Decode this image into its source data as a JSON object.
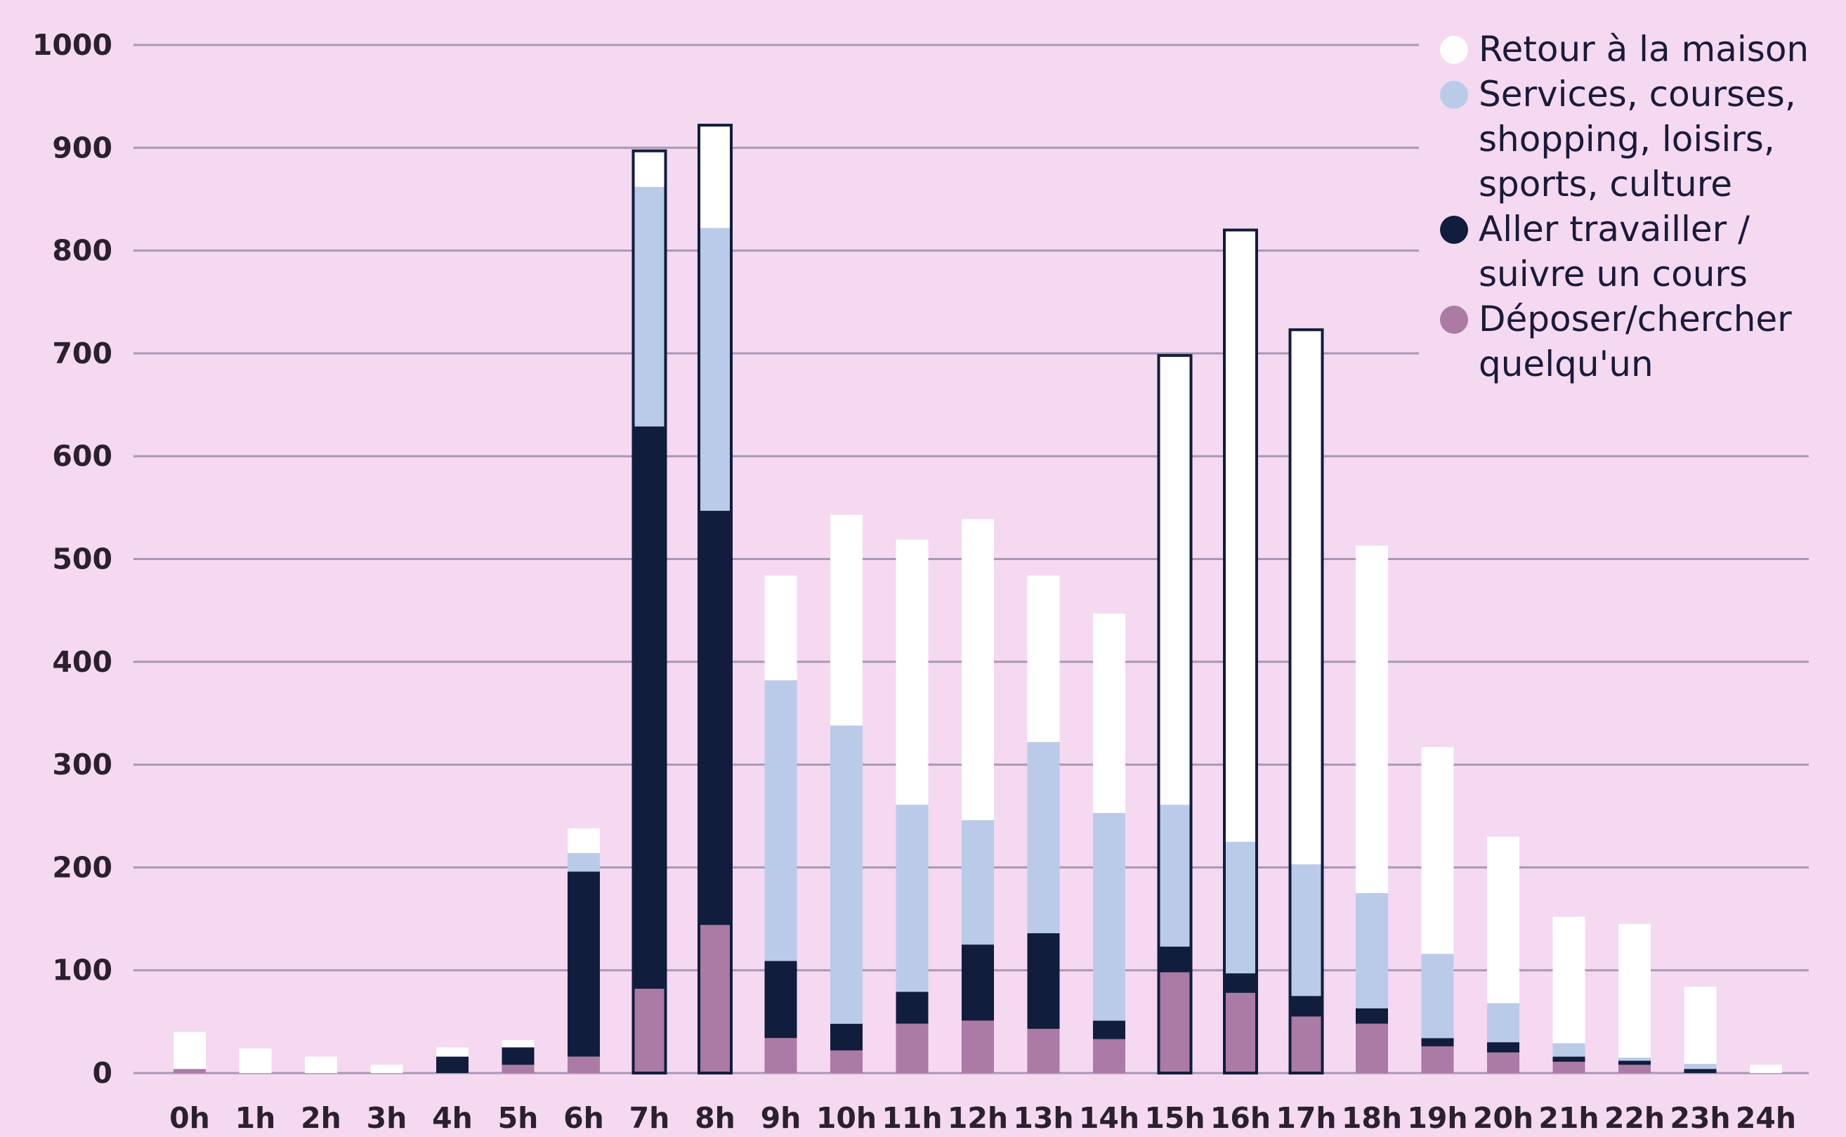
{
  "chart_data": {
    "type": "bar",
    "stacked": true,
    "categories": [
      "0h",
      "1h",
      "2h",
      "3h",
      "4h",
      "5h",
      "6h",
      "7h",
      "8h",
      "9h",
      "10h",
      "11h",
      "12h",
      "13h",
      "14h",
      "15h",
      "16h",
      "17h",
      "18h",
      "19h",
      "20h",
      "21h",
      "22h",
      "23h",
      "24h"
    ],
    "series": [
      {
        "name": "Déposer/chercher quelqu'un",
        "legend_lines": [
          "Déposer/chercher",
          "quelqu'un"
        ],
        "color": "#ab7aa5",
        "values": [
          4,
          0,
          0,
          0,
          0,
          8,
          16,
          82,
          144,
          34,
          22,
          48,
          51,
          43,
          33,
          98,
          78,
          55,
          48,
          26,
          20,
          11,
          8,
          0,
          0
        ]
      },
      {
        "name": "Aller travailler / suivre un cours",
        "legend_lines": [
          "Aller travailler /",
          "suivre un cours"
        ],
        "color": "#101d3c",
        "values": [
          0,
          0,
          0,
          0,
          16,
          17,
          180,
          547,
          403,
          75,
          26,
          31,
          74,
          93,
          18,
          25,
          19,
          20,
          15,
          8,
          10,
          5,
          4,
          4,
          0
        ]
      },
      {
        "name": "Services, courses, shopping, loisirs, sports, culture",
        "legend_lines": [
          "Services, courses,",
          "shopping, loisirs,",
          "sports, culture"
        ],
        "color": "#b9cbe8",
        "values": [
          0,
          0,
          0,
          0,
          0,
          0,
          18,
          233,
          275,
          273,
          290,
          182,
          121,
          186,
          202,
          138,
          128,
          128,
          112,
          82,
          38,
          13,
          3,
          5,
          0
        ]
      },
      {
        "name": "Retour à la maison",
        "legend_lines": [
          "Retour à la maison"
        ],
        "color": "#ffffff",
        "values": [
          36,
          24,
          16,
          8,
          9,
          7,
          24,
          35,
          100,
          102,
          205,
          258,
          293,
          162,
          194,
          437,
          595,
          520,
          338,
          201,
          162,
          123,
          130,
          75,
          8
        ]
      }
    ],
    "outlined_categories": [
      "7h",
      "8h",
      "15h",
      "16h",
      "17h"
    ],
    "ylim": [
      0,
      1000
    ],
    "yticks": [
      0,
      100,
      200,
      300,
      400,
      500,
      600,
      700,
      800,
      900,
      1000
    ],
    "grid": true,
    "legend_position": "top-right",
    "title": "",
    "xlabel": "",
    "ylabel": ""
  }
}
